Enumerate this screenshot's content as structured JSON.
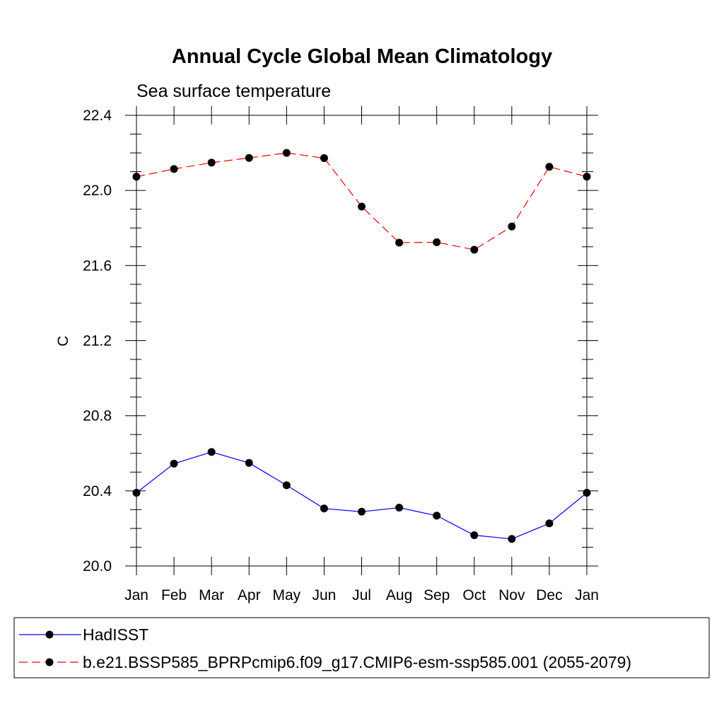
{
  "chart_data": {
    "type": "line",
    "title": "Annual Cycle Global Mean Climatology",
    "subtitle": "Sea surface temperature",
    "xlabel": "",
    "ylabel": "C",
    "categories": [
      "Jan",
      "Feb",
      "Mar",
      "Apr",
      "May",
      "Jun",
      "Jul",
      "Aug",
      "Sep",
      "Oct",
      "Nov",
      "Dec",
      "Jan"
    ],
    "ylim": [
      20.0,
      22.4
    ],
    "yticks": [
      "20.0",
      "20.4",
      "20.8",
      "21.2",
      "21.6",
      "22.0",
      "22.4"
    ],
    "ytick_values": [
      20.0,
      20.4,
      20.8,
      21.2,
      21.6,
      22.0,
      22.4
    ],
    "grid": false,
    "legend_position": "bottom",
    "series": [
      {
        "name": "HadISST",
        "color": "#0000ff",
        "dash": "solid",
        "values": [
          20.39,
          20.545,
          20.607,
          20.549,
          20.43,
          20.306,
          20.289,
          20.311,
          20.268,
          20.164,
          20.144,
          20.227,
          20.39
        ]
      },
      {
        "name": "b.e21.BSSP585_BPRPcmip6.f09_g17.CMIP6-esm-ssp585.001 (2055-2079)",
        "color": "#ff0000",
        "dash": "dashed",
        "values": [
          22.073,
          22.114,
          22.148,
          22.173,
          22.2,
          22.172,
          21.914,
          21.722,
          21.724,
          21.684,
          21.808,
          22.126,
          22.073
        ]
      }
    ]
  }
}
